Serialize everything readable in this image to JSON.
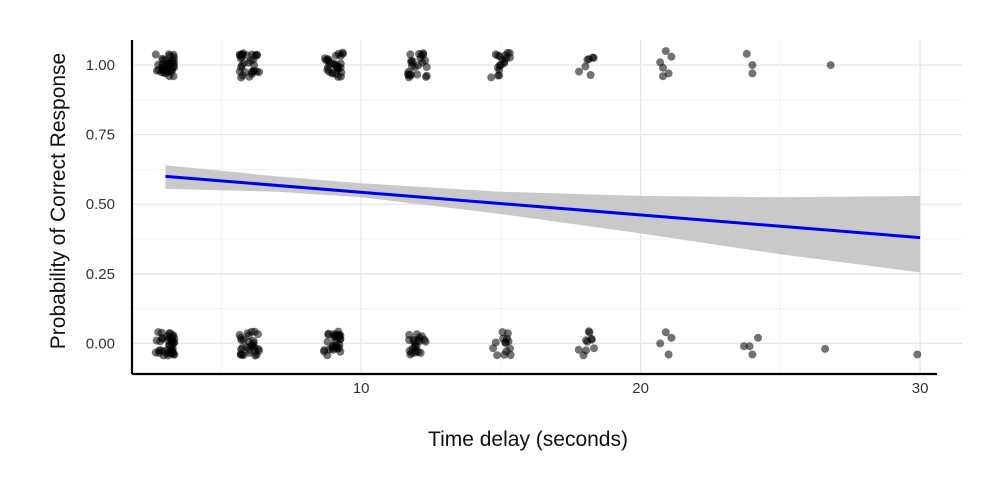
{
  "chart_data": {
    "type": "scatter",
    "title": "",
    "xlabel": "Time delay (seconds)",
    "ylabel": "Probability of Correct Response",
    "xlim": [
      1.8,
      31.5
    ],
    "ylim": [
      -0.11,
      1.09
    ],
    "xticks": [
      10,
      20,
      30
    ],
    "yticks": [
      0.0,
      0.25,
      0.5,
      0.75,
      1.0
    ],
    "xtick_labels": [
      "10",
      "20",
      "30"
    ],
    "ytick_labels": [
      "0.00",
      "0.25",
      "0.50",
      "0.75",
      "1.00"
    ],
    "grid": true,
    "legend": "none",
    "point_color": "#000000",
    "line_color": "#0000ee",
    "band_color": "#bfbfbf",
    "point_groups": [
      {
        "x": 3,
        "y": 1,
        "n": 40
      },
      {
        "x": 6,
        "y": 1,
        "n": 30
      },
      {
        "x": 9,
        "y": 1,
        "n": 30
      },
      {
        "x": 12,
        "y": 1,
        "n": 24
      },
      {
        "x": 15,
        "y": 1,
        "n": 18
      },
      {
        "x": 18,
        "y": 1,
        "n": 7
      },
      {
        "x": 3,
        "y": 0,
        "n": 40
      },
      {
        "x": 6,
        "y": 0,
        "n": 30
      },
      {
        "x": 9,
        "y": 0,
        "n": 30
      },
      {
        "x": 12,
        "y": 0,
        "n": 22
      },
      {
        "x": 15,
        "y": 0,
        "n": 14
      },
      {
        "x": 18,
        "y": 0,
        "n": 10
      }
    ],
    "points": [
      {
        "x": 20.9,
        "y": 1.05
      },
      {
        "x": 21.1,
        "y": 1.03
      },
      {
        "x": 20.7,
        "y": 1.01
      },
      {
        "x": 20.8,
        "y": 0.99
      },
      {
        "x": 21.0,
        "y": 0.97
      },
      {
        "x": 20.8,
        "y": 0.96
      },
      {
        "x": 23.8,
        "y": 1.04
      },
      {
        "x": 24.0,
        "y": 1.0
      },
      {
        "x": 24.0,
        "y": 0.97
      },
      {
        "x": 26.8,
        "y": 1.0
      },
      {
        "x": 20.9,
        "y": 0.04
      },
      {
        "x": 21.1,
        "y": 0.02
      },
      {
        "x": 20.7,
        "y": 0.0
      },
      {
        "x": 21.0,
        "y": -0.04
      },
      {
        "x": 23.7,
        "y": -0.01
      },
      {
        "x": 23.9,
        "y": -0.01
      },
      {
        "x": 24.2,
        "y": 0.02
      },
      {
        "x": 24.0,
        "y": -0.04
      },
      {
        "x": 26.6,
        "y": -0.02
      },
      {
        "x": 29.9,
        "y": -0.04
      }
    ],
    "fit_line": {
      "x": [
        3,
        30
      ],
      "y": [
        0.6,
        0.38
      ]
    },
    "confidence_band": {
      "x": [
        3,
        7,
        10,
        15,
        20,
        25,
        30
      ],
      "upper": [
        0.64,
        0.6,
        0.575,
        0.545,
        0.53,
        0.525,
        0.53
      ],
      "lower": [
        0.555,
        0.545,
        0.525,
        0.465,
        0.395,
        0.32,
        0.255
      ]
    }
  }
}
